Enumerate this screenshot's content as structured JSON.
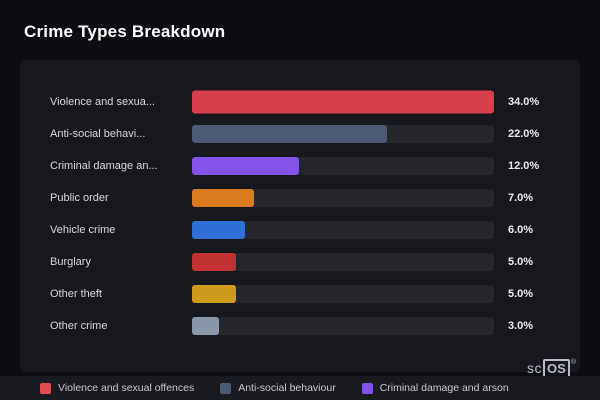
{
  "header": {
    "title": "Crime Types Breakdown"
  },
  "chart_data": {
    "type": "bar",
    "orientation": "horizontal",
    "title": "Crime Types Breakdown",
    "xlim": [
      0,
      34
    ],
    "grid": false,
    "categories": [
      "Violence and sexua...",
      "Anti-social behavi...",
      "Criminal damage an...",
      "Public order",
      "Vehicle crime",
      "Burglary",
      "Other theft",
      "Other crime"
    ],
    "values": [
      34.0,
      22.0,
      12.0,
      7.0,
      6.0,
      5.0,
      5.0,
      3.0
    ],
    "value_labels": [
      "34.0%",
      "22.0%",
      "12.0%",
      "7.0%",
      "6.0%",
      "5.0%",
      "5.0%",
      "3.0%"
    ],
    "bar_colors": [
      "#d8404d",
      "#4d5a73",
      "#8153e6",
      "#d97b1e",
      "#2f6fd6",
      "#c23232",
      "#cf9b1d",
      "#8a97a8"
    ]
  },
  "legend": {
    "items": [
      {
        "label": "Violence and sexual offences",
        "color": "#e14b52"
      },
      {
        "label": "Anti-social behaviour",
        "color": "#4d5a73"
      },
      {
        "label": "Criminal damage and arson",
        "color": "#8153e6"
      }
    ]
  },
  "logo": {
    "prefix": "sc",
    "boxed": "OS",
    "reg": "®"
  },
  "colors": {
    "background": "#0d0d12",
    "card": "#17171e",
    "track": "#26262d",
    "legend_bar": "#1a1a21"
  }
}
